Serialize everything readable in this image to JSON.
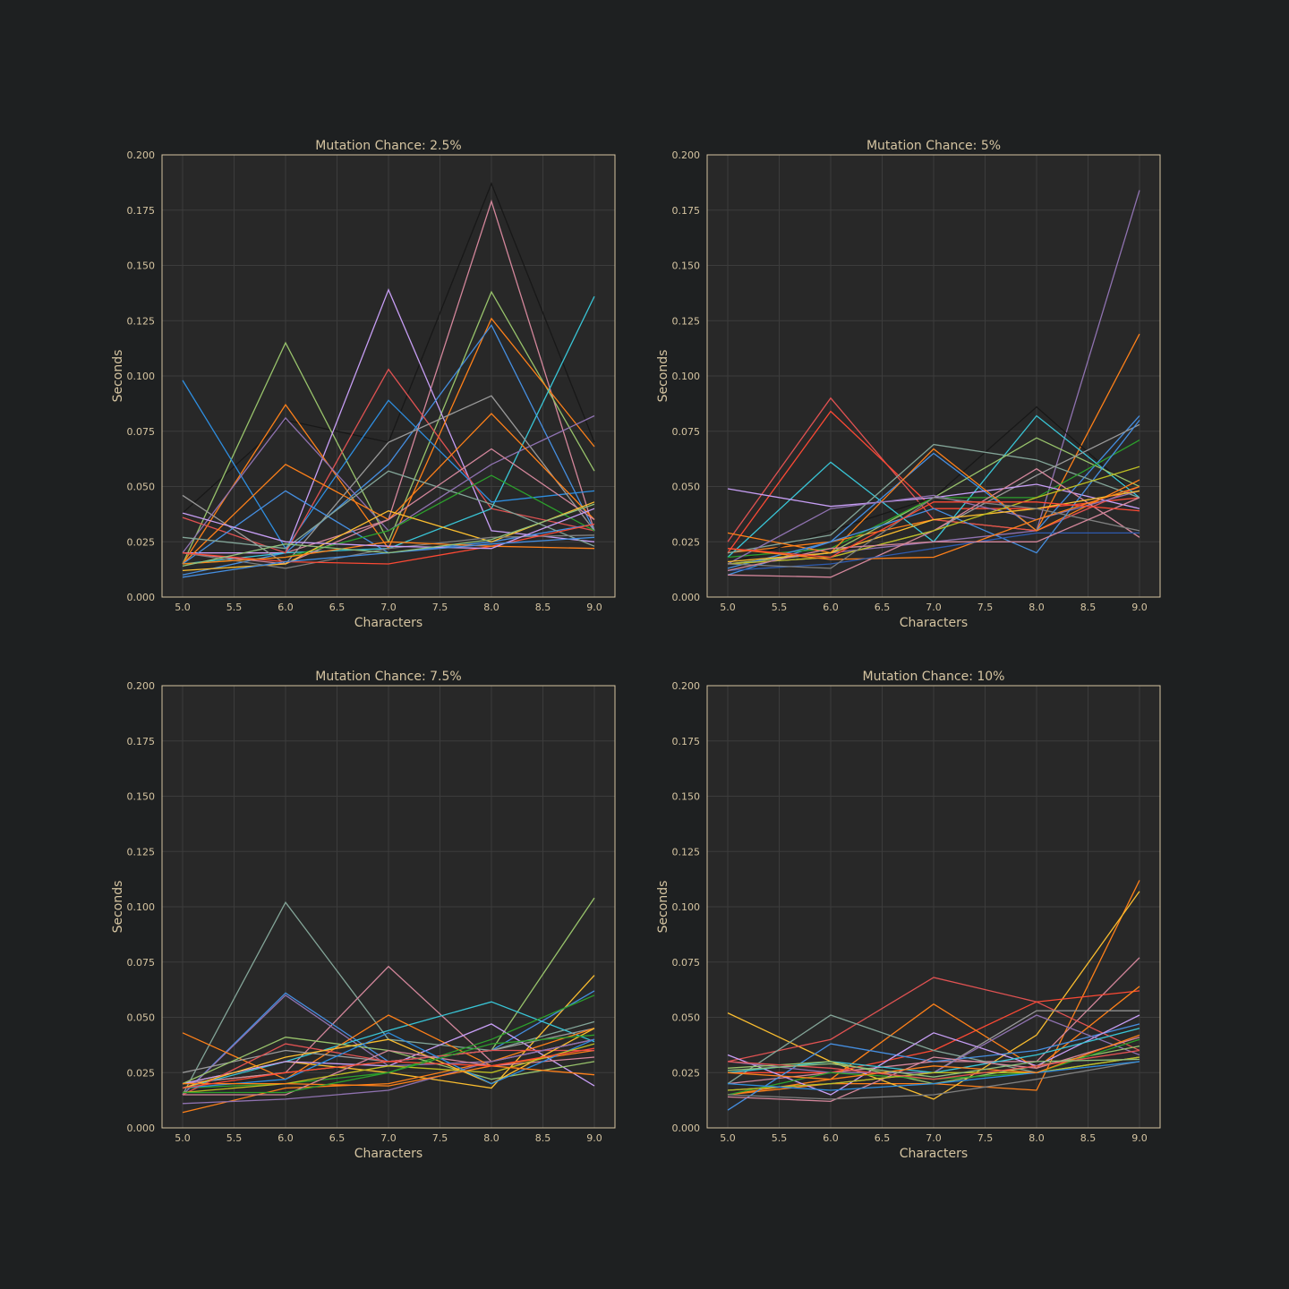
{
  "figure": {
    "background": "#1e2021",
    "axes_background": "#282828",
    "frame_color": "#d5c4a1",
    "text_color": "#d5c4a1",
    "grid_color": "#3c3c3c"
  },
  "palette": [
    "#458ee0",
    "#fe8019",
    "#98c36b",
    "#fb4934",
    "#c79ef5",
    "#8f72b0",
    "#d3869b",
    "#9a9a9a",
    "#b8bb26",
    "#39c5d6",
    "#fabd2f",
    "#1f77b4",
    "#ff7f0e",
    "#2ca02c",
    "#d62728",
    "#9467bd",
    "#e377c2",
    "#7f7f7f",
    "#17becf",
    "#bcbd22",
    "#8ec07c",
    "#83a598"
  ],
  "chart_data": [
    {
      "type": "line",
      "title": "Mutation Chance: 2.5%",
      "xlabel": "Characters",
      "ylabel": "Seconds",
      "xlim": [
        4.8,
        9.2
      ],
      "ylim": [
        0,
        0.2
      ],
      "xticks": [
        "5.0",
        "5.5",
        "6.0",
        "6.5",
        "7.0",
        "7.5",
        "8.0",
        "8.5",
        "9.0"
      ],
      "yticks": [
        "0.000",
        "0.025",
        "0.050",
        "0.075",
        "0.100",
        "0.125",
        "0.150",
        "0.175",
        "0.200"
      ],
      "grid": true,
      "x": [
        5,
        6,
        7,
        8,
        9
      ],
      "series": [
        {
          "color": "#181818",
          "values": [
            0.038,
            0.08,
            0.07,
            0.187,
            0.07
          ]
        },
        {
          "color": "#d3869b",
          "values": [
            0.02,
            0.02,
            0.035,
            0.179,
            0.03
          ]
        },
        {
          "color": "#98c36b",
          "values": [
            0.015,
            0.115,
            0.025,
            0.138,
            0.057
          ]
        },
        {
          "color": "#c79ef5",
          "values": [
            0.02,
            0.02,
            0.139,
            0.03,
            0.025
          ]
        },
        {
          "color": "#fe8019",
          "values": [
            0.015,
            0.087,
            0.022,
            0.126,
            0.068
          ]
        },
        {
          "color": "#458ee0",
          "values": [
            0.01,
            0.02,
            0.06,
            0.123,
            0.03
          ]
        },
        {
          "color": "#39c5d6",
          "values": [
            0.015,
            0.02,
            0.022,
            0.04,
            0.136
          ]
        },
        {
          "color": "#2e8ee0",
          "values": [
            0.098,
            0.022,
            0.089,
            0.043,
            0.048
          ]
        },
        {
          "color": "#e05252",
          "values": [
            0.036,
            0.02,
            0.103,
            0.04,
            0.03
          ]
        },
        {
          "color": "#9a9a9a",
          "values": [
            0.046,
            0.015,
            0.07,
            0.091,
            0.03
          ]
        },
        {
          "color": "#8f72b0",
          "values": [
            0.02,
            0.081,
            0.03,
            0.06,
            0.082
          ]
        },
        {
          "color": "#fe8019",
          "values": [
            0.015,
            0.06,
            0.035,
            0.083,
            0.035
          ]
        },
        {
          "color": "#458ee0",
          "values": [
            0.015,
            0.048,
            0.02,
            0.025,
            0.033
          ]
        },
        {
          "color": "#83a598",
          "values": [
            0.027,
            0.022,
            0.057,
            0.042,
            0.023
          ]
        },
        {
          "color": "#d3869b",
          "values": [
            0.02,
            0.015,
            0.035,
            0.067,
            0.035
          ]
        },
        {
          "color": "#2ca02c",
          "values": [
            0.015,
            0.018,
            0.03,
            0.055,
            0.03
          ]
        },
        {
          "color": "#fabd2f",
          "values": [
            0.012,
            0.015,
            0.039,
            0.025,
            0.043
          ]
        },
        {
          "color": "#7f7f7f",
          "values": [
            0.02,
            0.013,
            0.022,
            0.027,
            0.028
          ]
        },
        {
          "color": "#fb4934",
          "values": [
            0.02,
            0.016,
            0.015,
            0.023,
            0.033
          ]
        },
        {
          "color": "#fe8019",
          "values": [
            0.015,
            0.018,
            0.025,
            0.023,
            0.022
          ]
        },
        {
          "color": "#c79ef5",
          "values": [
            0.038,
            0.025,
            0.023,
            0.022,
            0.04
          ]
        },
        {
          "color": "#458ee0",
          "values": [
            0.009,
            0.016,
            0.02,
            0.024,
            0.027
          ]
        },
        {
          "color": "#8ec07c",
          "values": [
            0.014,
            0.024,
            0.02,
            0.026,
            0.042
          ]
        }
      ]
    },
    {
      "type": "line",
      "title": "Mutation Chance: 5%",
      "xlabel": "Characters",
      "ylabel": "Seconds",
      "xlim": [
        4.8,
        9.2
      ],
      "ylim": [
        0,
        0.2
      ],
      "xticks": [
        "5.0",
        "5.5",
        "6.0",
        "6.5",
        "7.0",
        "7.5",
        "8.0",
        "8.5",
        "9.0"
      ],
      "yticks": [
        "0.000",
        "0.025",
        "0.050",
        "0.075",
        "0.100",
        "0.125",
        "0.150",
        "0.175",
        "0.200"
      ],
      "grid": true,
      "x": [
        5,
        6,
        7,
        8,
        9
      ],
      "series": [
        {
          "color": "#8f72b0",
          "values": [
            0.015,
            0.02,
            0.025,
            0.03,
            0.184
          ]
        },
        {
          "color": "#fe8019",
          "values": [
            0.02,
            0.025,
            0.035,
            0.03,
            0.119
          ]
        },
        {
          "color": "#e05252",
          "values": [
            0.025,
            0.09,
            0.035,
            0.03,
            0.05
          ]
        },
        {
          "color": "#fb4934",
          "values": [
            0.02,
            0.084,
            0.04,
            0.04,
            0.045
          ]
        },
        {
          "color": "#181818",
          "values": [
            0.015,
            0.03,
            0.045,
            0.086,
            0.045
          ]
        },
        {
          "color": "#39c5d6",
          "values": [
            0.018,
            0.061,
            0.025,
            0.082,
            0.045
          ]
        },
        {
          "color": "#458ee0",
          "values": [
            0.01,
            0.025,
            0.065,
            0.03,
            0.082
          ]
        },
        {
          "color": "#83a598",
          "values": [
            0.02,
            0.028,
            0.069,
            0.062,
            0.045
          ]
        },
        {
          "color": "#98c36b",
          "values": [
            0.015,
            0.02,
            0.045,
            0.072,
            0.05
          ]
        },
        {
          "color": "#2ca02c",
          "values": [
            0.018,
            0.022,
            0.045,
            0.045,
            0.071
          ]
        },
        {
          "color": "#9a9a9a",
          "values": [
            0.015,
            0.018,
            0.03,
            0.055,
            0.078
          ]
        },
        {
          "color": "#c79ef5",
          "values": [
            0.049,
            0.041,
            0.045,
            0.051,
            0.04
          ]
        },
        {
          "color": "#fe8019",
          "values": [
            0.029,
            0.02,
            0.067,
            0.03,
            0.053
          ]
        },
        {
          "color": "#8f72b0",
          "values": [
            0.015,
            0.04,
            0.046,
            0.035,
            0.048
          ]
        },
        {
          "color": "#d3869b",
          "values": [
            0.01,
            0.009,
            0.03,
            0.058,
            0.027
          ]
        },
        {
          "color": "#458ee0",
          "values": [
            0.013,
            0.025,
            0.04,
            0.02,
            0.08
          ]
        },
        {
          "color": "#fabd2f",
          "values": [
            0.016,
            0.02,
            0.035,
            0.04,
            0.048
          ]
        },
        {
          "color": "#bcbd22",
          "values": [
            0.015,
            0.018,
            0.03,
            0.045,
            0.059
          ]
        },
        {
          "color": "#fe8019",
          "values": [
            0.022,
            0.017,
            0.018,
            0.035,
            0.05
          ]
        },
        {
          "color": "#2e5bb0",
          "values": [
            0.012,
            0.015,
            0.022,
            0.029,
            0.029
          ]
        },
        {
          "color": "#7f7f7f",
          "values": [
            0.015,
            0.013,
            0.045,
            0.04,
            0.03
          ]
        },
        {
          "color": "#d3869b",
          "values": [
            0.012,
            0.022,
            0.025,
            0.025,
            0.045
          ]
        },
        {
          "color": "#fb4934",
          "values": [
            0.022,
            0.018,
            0.043,
            0.043,
            0.039
          ]
        }
      ]
    },
    {
      "type": "line",
      "title": "Mutation Chance: 7.5%",
      "xlabel": "Characters",
      "ylabel": "Seconds",
      "xlim": [
        4.8,
        9.2
      ],
      "ylim": [
        0,
        0.2
      ],
      "xticks": [
        "5.0",
        "5.5",
        "6.0",
        "6.5",
        "7.0",
        "7.5",
        "8.0",
        "8.5",
        "9.0"
      ],
      "yticks": [
        "0.000",
        "0.025",
        "0.050",
        "0.075",
        "0.100",
        "0.125",
        "0.150",
        "0.175",
        "0.200"
      ],
      "grid": true,
      "x": [
        5,
        6,
        7,
        8,
        9
      ],
      "series": [
        {
          "color": "#98c36b",
          "values": [
            0.02,
            0.025,
            0.03,
            0.035,
            0.104
          ]
        },
        {
          "color": "#83a598",
          "values": [
            0.015,
            0.102,
            0.04,
            0.035,
            0.048
          ]
        },
        {
          "color": "#fabd2f",
          "values": [
            0.02,
            0.03,
            0.025,
            0.018,
            0.069
          ]
        },
        {
          "color": "#d3869b",
          "values": [
            0.02,
            0.025,
            0.073,
            0.03,
            0.04
          ]
        },
        {
          "color": "#458ee0",
          "values": [
            0.015,
            0.061,
            0.03,
            0.035,
            0.062
          ]
        },
        {
          "color": "#8f72b0",
          "values": [
            0.015,
            0.06,
            0.028,
            0.03,
            0.04
          ]
        },
        {
          "color": "#39c5d6",
          "values": [
            0.018,
            0.03,
            0.044,
            0.057,
            0.039
          ]
        },
        {
          "color": "#fe8019",
          "values": [
            0.043,
            0.022,
            0.051,
            0.028,
            0.035
          ]
        },
        {
          "color": "#c79ef5",
          "values": [
            0.02,
            0.03,
            0.028,
            0.047,
            0.019
          ]
        },
        {
          "color": "#2ca02c",
          "values": [
            0.018,
            0.02,
            0.025,
            0.04,
            0.06
          ]
        },
        {
          "color": "#9a9a9a",
          "values": [
            0.025,
            0.035,
            0.03,
            0.035,
            0.045
          ]
        },
        {
          "color": "#98c36b",
          "values": [
            0.02,
            0.041,
            0.035,
            0.022,
            0.03
          ]
        },
        {
          "color": "#fe8019",
          "values": [
            0.007,
            0.018,
            0.02,
            0.03,
            0.045
          ]
        },
        {
          "color": "#e05252",
          "values": [
            0.015,
            0.038,
            0.03,
            0.035,
            0.035
          ]
        },
        {
          "color": "#fabd2f",
          "values": [
            0.018,
            0.032,
            0.04,
            0.02,
            0.045
          ]
        },
        {
          "color": "#8f72b0",
          "values": [
            0.011,
            0.013,
            0.017,
            0.03,
            0.04
          ]
        },
        {
          "color": "#d3869b",
          "values": [
            0.015,
            0.015,
            0.035,
            0.028,
            0.032
          ]
        },
        {
          "color": "#2e8ee0",
          "values": [
            0.018,
            0.022,
            0.043,
            0.02,
            0.04
          ]
        },
        {
          "color": "#bcbd22",
          "values": [
            0.016,
            0.02,
            0.028,
            0.025,
            0.038
          ]
        },
        {
          "color": "#fe8019",
          "values": [
            0.02,
            0.02,
            0.019,
            0.028,
            0.024
          ]
        },
        {
          "color": "#fb4934",
          "values": [
            0.018,
            0.025,
            0.03,
            0.028,
            0.036
          ]
        },
        {
          "color": "#2ca02c",
          "values": [
            0.016,
            0.016,
            0.025,
            0.038,
            0.042
          ]
        }
      ]
    },
    {
      "type": "line",
      "title": "Mutation Chance: 10%",
      "xlabel": "Characters",
      "ylabel": "Seconds",
      "xlim": [
        4.8,
        9.2
      ],
      "ylim": [
        0,
        0.2
      ],
      "xticks": [
        "5.0",
        "5.5",
        "6.0",
        "6.5",
        "7.0",
        "7.5",
        "8.0",
        "8.5",
        "9.0"
      ],
      "yticks": [
        "0.000",
        "0.025",
        "0.050",
        "0.075",
        "0.100",
        "0.125",
        "0.150",
        "0.175",
        "0.200"
      ],
      "grid": true,
      "x": [
        5,
        6,
        7,
        8,
        9
      ],
      "series": [
        {
          "color": "#fe8019",
          "values": [
            0.015,
            0.02,
            0.02,
            0.017,
            0.112
          ]
        },
        {
          "color": "#fabd2f",
          "values": [
            0.052,
            0.03,
            0.013,
            0.042,
            0.107
          ]
        },
        {
          "color": "#d3869b",
          "values": [
            0.02,
            0.025,
            0.03,
            0.03,
            0.077
          ]
        },
        {
          "color": "#e05252",
          "values": [
            0.03,
            0.04,
            0.068,
            0.057,
            0.035
          ]
        },
        {
          "color": "#fb4934",
          "values": [
            0.025,
            0.025,
            0.035,
            0.057,
            0.062
          ]
        },
        {
          "color": "#fe8019",
          "values": [
            0.015,
            0.022,
            0.056,
            0.027,
            0.064
          ]
        },
        {
          "color": "#83a598",
          "values": [
            0.02,
            0.051,
            0.035,
            0.025,
            0.032
          ]
        },
        {
          "color": "#9a9a9a",
          "values": [
            0.017,
            0.02,
            0.025,
            0.053,
            0.053
          ]
        },
        {
          "color": "#458ee0",
          "values": [
            0.008,
            0.038,
            0.03,
            0.035,
            0.047
          ]
        },
        {
          "color": "#c79ef5",
          "values": [
            0.033,
            0.015,
            0.043,
            0.028,
            0.051
          ]
        },
        {
          "color": "#8f72b0",
          "values": [
            0.03,
            0.025,
            0.025,
            0.051,
            0.033
          ]
        },
        {
          "color": "#39c5d6",
          "values": [
            0.025,
            0.03,
            0.025,
            0.033,
            0.045
          ]
        },
        {
          "color": "#98c36b",
          "values": [
            0.027,
            0.03,
            0.02,
            0.028,
            0.037
          ]
        },
        {
          "color": "#2ca02c",
          "values": [
            0.015,
            0.025,
            0.022,
            0.025,
            0.04
          ]
        },
        {
          "color": "#d3869b",
          "values": [
            0.014,
            0.012,
            0.032,
            0.027,
            0.041
          ]
        },
        {
          "color": "#7f7f7f",
          "values": [
            0.015,
            0.013,
            0.015,
            0.022,
            0.03
          ]
        },
        {
          "color": "#bcbd22",
          "values": [
            0.017,
            0.02,
            0.025,
            0.025,
            0.032
          ]
        },
        {
          "color": "#2e8ee0",
          "values": [
            0.02,
            0.017,
            0.02,
            0.025,
            0.03
          ]
        },
        {
          "color": "#fe8019",
          "values": [
            0.025,
            0.022,
            0.028,
            0.025,
            0.042
          ]
        },
        {
          "color": "#e05252",
          "values": [
            0.03,
            0.027,
            0.022,
            0.028,
            0.035
          ]
        },
        {
          "color": "#8ec07c",
          "values": [
            0.026,
            0.029,
            0.023,
            0.03,
            0.031
          ]
        }
      ]
    }
  ]
}
